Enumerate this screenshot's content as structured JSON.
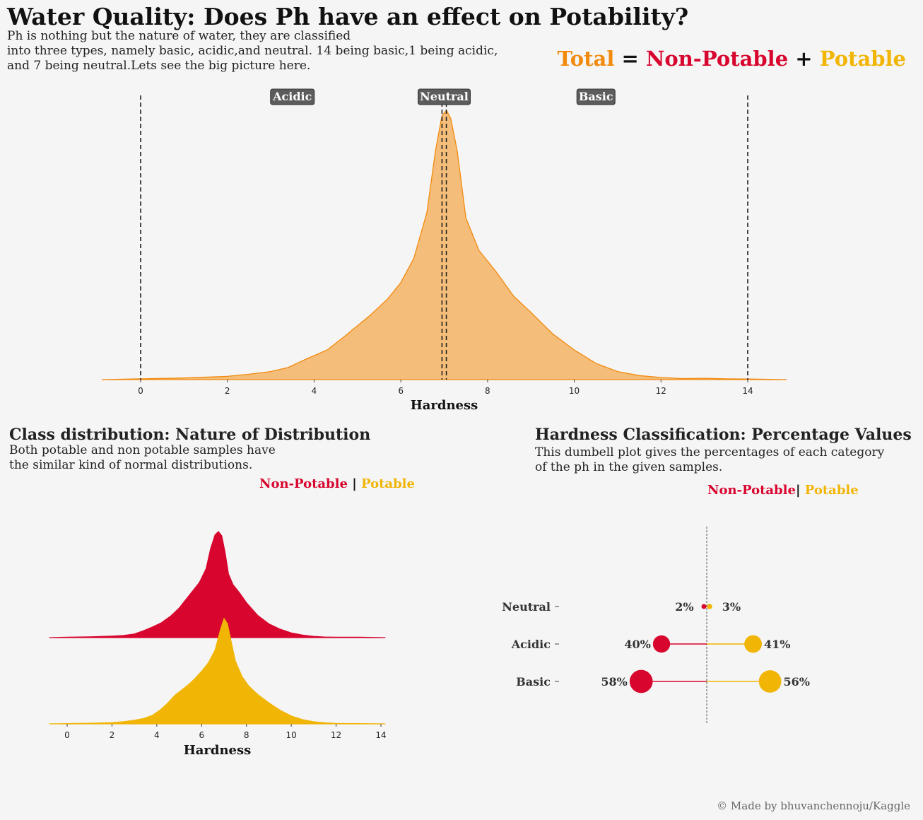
{
  "header": {
    "title": "Water Quality: Does Ph have an effect on Potability?",
    "subtitle": "Ph is nothing but the nature of water, they are classified\ninto three types, namely basic, acidic,and neutral. 14 being basic,1 being acidic,\nand 7 being neutral.Lets see the big picture here.",
    "formula": {
      "total": "Total",
      "equals": "=",
      "non_potable": "Non-Potable",
      "plus": "+",
      "potable": "Potable"
    }
  },
  "colors": {
    "total": "#f28a0e",
    "total_fill": "#f4bd79",
    "non_potable": "#d8052e",
    "potable": "#f1b505",
    "badge": "#5c5c5c",
    "background": "#f5f5f5"
  },
  "chart_data": [
    {
      "type": "area",
      "xlabel": "Hardness",
      "xlim": [
        -0.9,
        14.9
      ],
      "xticks": [
        0,
        2,
        4,
        6,
        8,
        10,
        12,
        14
      ],
      "vlines": [
        0,
        6.95,
        7.05,
        14
      ],
      "annotations": [
        {
          "text": "Acidic",
          "x": 3.5
        },
        {
          "text": "Neutral",
          "x": 7.0
        },
        {
          "text": "Basic",
          "x": 10.5
        }
      ],
      "series": [
        {
          "x": [
            -0.9,
            0,
            1,
            2,
            2.5,
            3,
            3.4,
            3.8,
            4.3,
            4.7,
            5.0,
            5.3,
            5.7,
            6.0,
            6.3,
            6.6,
            6.8,
            6.95,
            7.05,
            7.15,
            7.3,
            7.5,
            7.8,
            8.2,
            8.6,
            9.0,
            9.5,
            10.0,
            10.5,
            11.0,
            11.5,
            12.0,
            12.5,
            13.0,
            13.5,
            14.0,
            14.9
          ],
          "y": [
            0.0,
            0.003,
            0.006,
            0.012,
            0.02,
            0.03,
            0.045,
            0.075,
            0.11,
            0.16,
            0.2,
            0.24,
            0.3,
            0.36,
            0.45,
            0.62,
            0.85,
            0.98,
            1.0,
            0.97,
            0.85,
            0.6,
            0.48,
            0.4,
            0.31,
            0.25,
            0.17,
            0.11,
            0.06,
            0.03,
            0.015,
            0.008,
            0.004,
            0.005,
            0.003,
            0.002,
            0.0
          ]
        }
      ]
    },
    {
      "type": "area",
      "xlabel": "Hardness",
      "xlim": [
        -0.8,
        14.2
      ],
      "xticks": [
        0,
        2,
        4,
        6,
        8,
        10,
        12,
        14
      ],
      "legend": {
        "non_potable": "Non-Potable",
        "separator": "|",
        "potable": "Potable"
      },
      "series": [
        {
          "name": "Non-Potable",
          "x": [
            -0.8,
            0,
            1,
            2,
            2.5,
            3.0,
            3.4,
            3.8,
            4.2,
            4.6,
            5.0,
            5.3,
            5.6,
            5.9,
            6.2,
            6.4,
            6.6,
            6.75,
            6.9,
            7.05,
            7.2,
            7.4,
            7.7,
            8.0,
            8.5,
            9.0,
            9.5,
            10.0,
            10.5,
            11.0,
            11.5,
            12.0,
            13.0,
            14.2
          ],
          "y": [
            0.0,
            0.004,
            0.008,
            0.015,
            0.02,
            0.035,
            0.065,
            0.1,
            0.14,
            0.2,
            0.28,
            0.36,
            0.44,
            0.52,
            0.65,
            0.84,
            0.97,
            1.0,
            0.96,
            0.8,
            0.6,
            0.5,
            0.42,
            0.33,
            0.21,
            0.13,
            0.08,
            0.045,
            0.025,
            0.012,
            0.006,
            0.004,
            0.005,
            0.0
          ]
        },
        {
          "name": "Potable",
          "x": [
            -0.8,
            0,
            1,
            2,
            2.5,
            3.0,
            3.4,
            3.8,
            4.2,
            4.5,
            4.8,
            5.1,
            5.4,
            5.7,
            6.0,
            6.3,
            6.6,
            6.85,
            7.0,
            7.15,
            7.3,
            7.5,
            7.8,
            8.1,
            8.5,
            9.0,
            9.5,
            10.0,
            10.5,
            11.0,
            11.5,
            12.0,
            13.0,
            14.2
          ],
          "y": [
            0.0,
            0.003,
            0.006,
            0.012,
            0.02,
            0.035,
            0.05,
            0.08,
            0.14,
            0.2,
            0.27,
            0.32,
            0.37,
            0.43,
            0.5,
            0.58,
            0.7,
            0.9,
            1.0,
            0.95,
            0.8,
            0.6,
            0.45,
            0.36,
            0.28,
            0.2,
            0.13,
            0.075,
            0.04,
            0.02,
            0.01,
            0.005,
            0.003,
            0.0
          ]
        }
      ]
    },
    {
      "type": "scatter",
      "categories": [
        "Neutral",
        "Acidic",
        "Basic"
      ],
      "legend": {
        "non_potable": "Non-Potable",
        "separator": "|",
        "potable": "Potable"
      },
      "series": [
        {
          "name": "Non-Potable",
          "values": [
            2,
            40,
            58
          ],
          "labels": [
            "2%",
            "40%",
            "58%"
          ]
        },
        {
          "name": "Potable",
          "values": [
            3,
            41,
            56
          ],
          "labels": [
            "3%",
            "41%",
            "56%"
          ]
        }
      ]
    }
  ],
  "sections": {
    "dist": {
      "title": "Class distribution: Nature of Distribution",
      "subtitle": "Both potable and non potable samples have\nthe similar kind of normal distributions."
    },
    "dumbbell": {
      "title": "Hardness Classification: Percentage Values",
      "subtitle": "This dumbell plot gives the percentages of each category\nof the ph in the given samples."
    }
  },
  "footer": {
    "credit": "© Made by bhuvanchennoju/Kaggle"
  }
}
